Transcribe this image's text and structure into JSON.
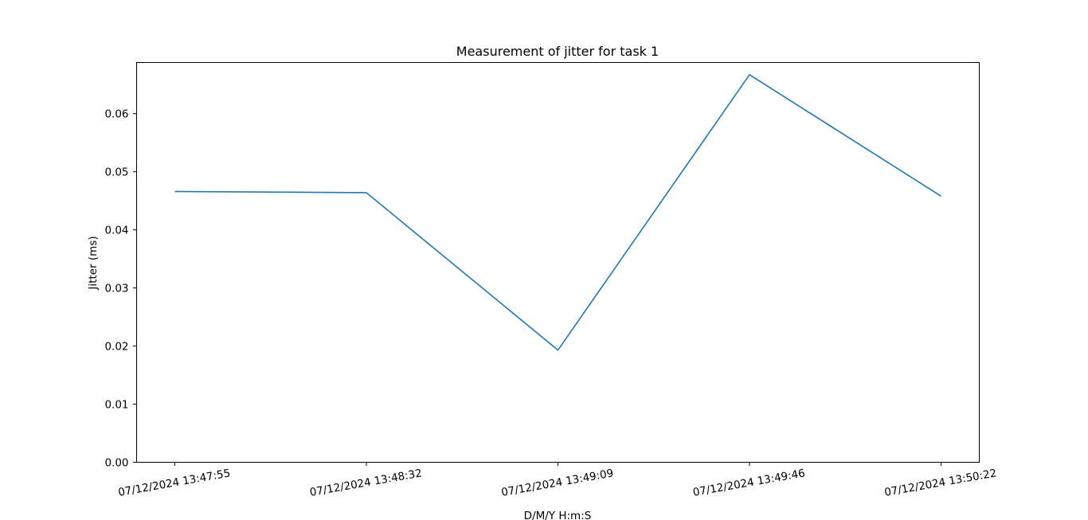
{
  "chart_data": {
    "type": "line",
    "title": "Measurement of jitter for task 1",
    "xlabel": "D/M/Y H:m:S",
    "ylabel": "Jitter (ms)",
    "categories": [
      "07/12/2024 13:47:55",
      "07/12/2024 13:48:32",
      "07/12/2024 13:49:09",
      "07/12/2024 13:49:46",
      "07/12/2024 13:50:22"
    ],
    "series": [
      {
        "values": [
          0.0466,
          0.0464,
          0.0193,
          0.0667,
          0.0458
        ],
        "color": "#1f77b4"
      }
    ],
    "ylim": [
      0,
      0.0688
    ],
    "yticks": [
      0.0,
      0.01,
      0.02,
      0.03,
      0.04,
      0.05,
      0.06
    ],
    "ytick_labels": [
      "0.00",
      "0.01",
      "0.02",
      "0.03",
      "0.04",
      "0.05",
      "0.06"
    ],
    "grid": false,
    "legend": "none"
  }
}
